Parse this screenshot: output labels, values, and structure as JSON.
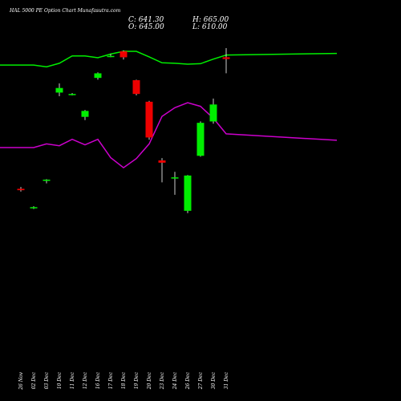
{
  "header": {
    "title": "HAL 5000 PE Option Chart Munafasutra.com"
  },
  "ohlc": {
    "close": "C: 641.30",
    "open": "O: 645.00",
    "high": "H: 665.00",
    "low": "L: 610.00"
  },
  "colors": {
    "background": "#000000",
    "bull": "#00ee00",
    "bear": "#ee0000",
    "line_green": "#00ee00",
    "line_magenta": "#cc00cc",
    "text": "#ffffff"
  },
  "chart_data": {
    "type": "candlestick",
    "categories": [
      "26 Nov",
      "02 Dec",
      "03 Dec",
      "10 Dec",
      "11 Dec",
      "12 Dec",
      "16 Dec",
      "17 Dec",
      "18 Dec",
      "19 Dec",
      "20 Dec",
      "23 Dec",
      "24 Dec",
      "26 Dec",
      "27 Dec",
      "30 Dec",
      "31 Dec"
    ],
    "x": [
      "26 Nov",
      "02 Dec",
      "03 Dec",
      "10 Dec",
      "11 Dec",
      "12 Dec",
      "16 Dec",
      "17 Dec",
      "18 Dec",
      "19 Dec",
      "20 Dec",
      "23 Dec",
      "24 Dec",
      "26 Dec",
      "27 Dec",
      "30 Dec",
      "31 Dec"
    ],
    "candles": [
      {
        "open": 358.0,
        "high": 362.0,
        "low": 352.0,
        "close": 355.0
      },
      {
        "open": 318.0,
        "high": 320.0,
        "low": 314.0,
        "close": 318.0
      },
      {
        "open": 376.0,
        "high": 379.0,
        "low": 370.0,
        "close": 378.0
      },
      {
        "open": 568.0,
        "high": 588.0,
        "low": 560.0,
        "close": 578.0
      },
      {
        "open": 563.0,
        "high": 567.0,
        "low": 562.0,
        "close": 565.0
      },
      {
        "open": 515.0,
        "high": 530.0,
        "low": 508.0,
        "close": 528.0
      },
      {
        "open": 600.0,
        "high": 612.0,
        "low": 596.0,
        "close": 610.0
      },
      {
        "open": 648.0,
        "high": 652.0,
        "low": 645.0,
        "close": 648.0
      },
      {
        "open": 658.0,
        "high": 660.0,
        "low": 640.0,
        "close": 645.0
      },
      {
        "open": 595.0,
        "high": 596.0,
        "low": 562.0,
        "close": 565.0
      },
      {
        "open": 548.0,
        "high": 550.0,
        "low": 465.0,
        "close": 470.0
      },
      {
        "open": 420.0,
        "high": 425.0,
        "low": 372.0,
        "close": 415.0
      },
      {
        "open": 382.0,
        "high": 395.0,
        "low": 345.0,
        "close": 383.0
      },
      {
        "open": 310.0,
        "high": 388.0,
        "low": 305.0,
        "close": 387.0
      },
      {
        "open": 430.0,
        "high": 505.0,
        "low": 428.0,
        "close": 502.0
      },
      {
        "open": 505.0,
        "high": 555.0,
        "low": 500.0,
        "close": 542.0
      },
      {
        "open": 645.0,
        "high": 665.0,
        "low": 610.0,
        "close": 641.3
      }
    ],
    "series": [
      {
        "values": [
          628,
          628,
          624,
          632,
          648,
          648,
          644,
          652,
          658,
          658,
          646,
          633,
          632,
          630,
          631,
          641,
          650
        ]
      },
      {
        "values": [
          448,
          448,
          456,
          452,
          466,
          454,
          466,
          426,
          404,
          424,
          456,
          516,
          535,
          546,
          538,
          512,
          478
        ]
      }
    ],
    "ylim": [
      0,
      700
    ],
    "xlabel": "",
    "ylabel": "",
    "title": ""
  }
}
